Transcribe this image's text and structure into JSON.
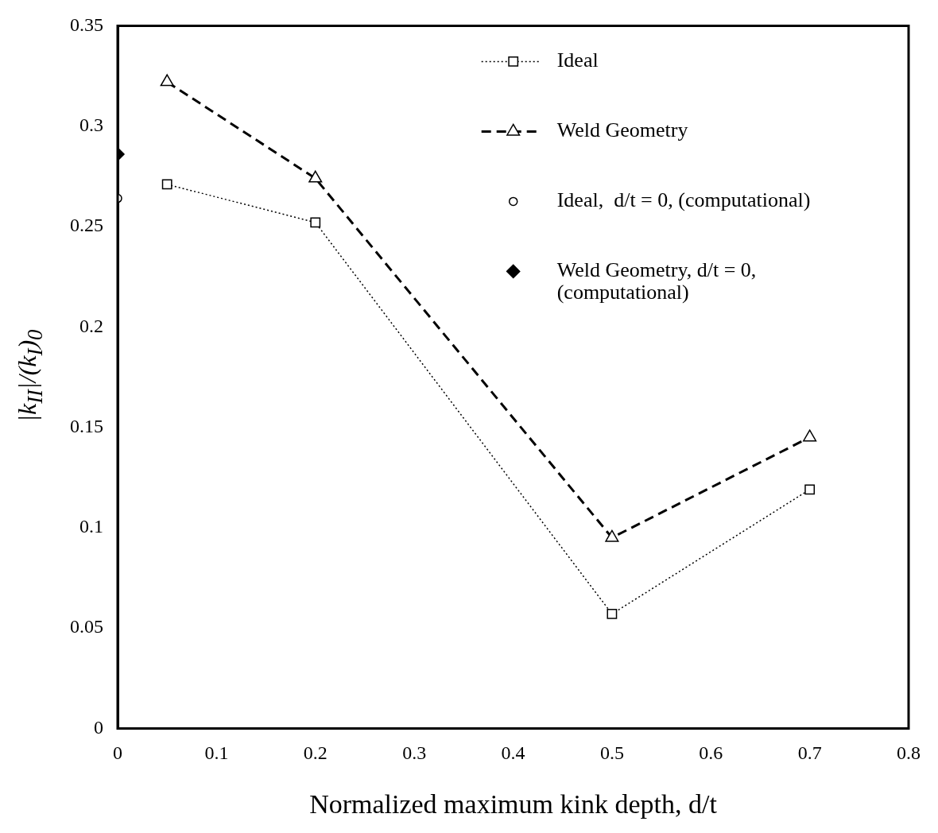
{
  "chart_data": {
    "type": "line",
    "xlabel": "Normalized maximum kink depth, d/t",
    "ylabel": "|k$_{II}$|/(k$_{I}$)$_{0}$",
    "xlim": [
      0,
      0.8
    ],
    "xticks": [
      0,
      0.1,
      0.2,
      0.3,
      0.4,
      0.5,
      0.6,
      0.7,
      0.8
    ],
    "ylim": [
      0,
      0.35
    ],
    "yticks": [
      0,
      0.05,
      0.1,
      0.15,
      0.2,
      0.25,
      0.3,
      0.35
    ],
    "grid": false,
    "legend": "top right",
    "series": [
      {
        "name": "Ideal",
        "color": "#000000",
        "marker": "square",
        "line_style": "dotted",
        "x": [
          0.05,
          0.2,
          0.5,
          0.7
        ],
        "values": [
          0.271,
          0.252,
          0.057,
          0.119
        ]
      },
      {
        "name": "Weld Geometry",
        "color": "#000000",
        "marker": "triangle",
        "line_style": "dashed",
        "x": [
          0.05,
          0.2,
          0.5,
          0.7
        ],
        "values": [
          0.322,
          0.274,
          0.095,
          0.145
        ]
      },
      {
        "name": "Ideal,  d/t = 0, (computational)",
        "color": "#000000",
        "type": "scatter",
        "marker": "circle",
        "x": [
          0
        ],
        "values": [
          0.264
        ]
      },
      {
        "name": "Weld Geometry, d/t = 0, (computational)",
        "color": "#000000",
        "type": "scatter",
        "marker": "diamond",
        "x": [
          0
        ],
        "values": [
          0.286
        ]
      }
    ]
  }
}
